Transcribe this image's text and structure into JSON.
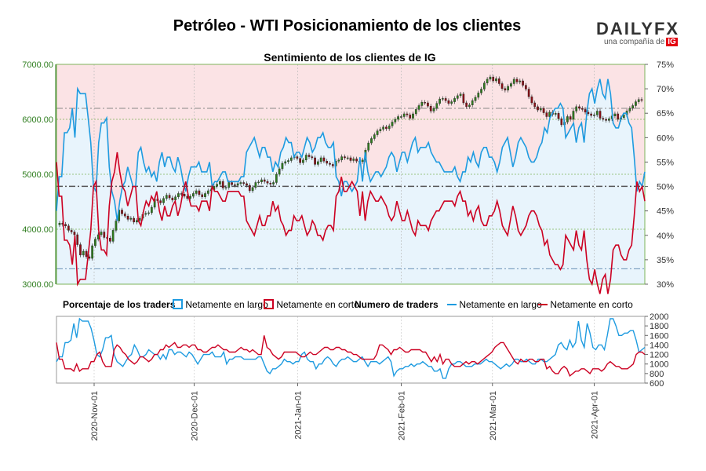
{
  "title": "Petróleo - WTI Posicionamiento de los clientes",
  "brand": {
    "name_left": "DAILY",
    "name_right": "FX",
    "tagline": "una compañía de",
    "tagline_mark": "IG"
  },
  "colors": {
    "long": "#1e9be0",
    "short": "#cc0022",
    "bg_top": "#fbe3e5",
    "bg_bottom": "#e8f4fc",
    "candle_up": "#2e7d1e",
    "candle_down": "#8b0f16",
    "left_axis": "#2e7d1e"
  },
  "chart_data": [
    {
      "type": "line",
      "title": "Sentimiento de los clientes de IG",
      "left_axis": {
        "ticks": [
          "7000.00",
          "6000.00",
          "5000.00",
          "4000.00",
          "3000.00"
        ],
        "range": [
          3000,
          7000
        ]
      },
      "right_axis": {
        "ticks": [
          "75%",
          "70%",
          "65%",
          "60%",
          "55%",
          "50%",
          "45%",
          "40%",
          "35%",
          "30%"
        ],
        "range": [
          30,
          75
        ]
      },
      "reference_lines": {
        "price_high": 6200,
        "price_low": 3280,
        "price_mid": 4780
      },
      "series": [
        {
          "name": "Netamente en largo",
          "values": [
            45,
            52,
            52,
            61,
            61,
            62,
            66,
            60,
            70,
            69,
            69,
            69,
            64,
            59,
            50,
            49,
            59,
            63,
            63,
            64,
            54,
            49,
            47,
            43,
            47,
            50,
            51,
            54,
            52,
            50,
            50,
            57,
            58,
            55,
            53,
            54,
            52,
            53,
            51,
            55,
            57,
            54,
            56,
            56,
            54,
            53,
            56,
            54,
            51,
            49,
            52,
            54,
            54,
            54,
            55,
            53,
            53,
            53,
            55,
            50,
            51,
            51,
            52,
            53,
            53,
            51,
            51,
            51,
            51,
            51,
            52,
            52,
            57,
            58,
            59,
            60,
            58,
            56,
            58,
            58,
            56,
            56,
            53,
            55,
            54,
            57,
            58,
            60,
            59,
            59,
            56,
            57,
            57,
            56,
            58,
            60,
            59,
            57,
            58,
            60,
            60,
            61,
            59,
            58,
            58,
            59,
            52,
            51,
            48,
            51,
            51,
            50,
            49,
            50,
            51,
            56,
            51,
            57,
            53,
            51,
            52,
            53,
            53,
            52,
            53,
            54,
            56,
            57,
            56,
            53,
            55,
            57,
            57,
            55,
            57,
            59,
            60,
            57,
            58,
            58,
            58,
            59,
            57,
            56,
            55,
            55,
            54,
            53,
            53,
            53,
            53,
            54,
            52,
            51,
            53,
            53,
            56,
            55,
            57,
            55,
            54,
            57,
            58,
            58,
            56,
            56,
            55,
            53,
            55,
            58,
            59,
            60,
            57,
            54,
            56,
            59,
            60,
            59,
            58,
            56,
            55,
            55,
            56,
            58,
            59,
            62,
            61,
            64,
            65,
            66,
            66,
            67,
            66,
            60,
            61,
            62,
            63,
            59,
            62,
            63,
            59,
            65,
            69,
            70,
            67,
            70,
            72,
            69,
            68,
            72,
            69,
            63,
            62,
            62,
            64,
            65,
            65,
            63,
            62,
            56,
            49,
            51,
            50,
            53
          ]
        },
        {
          "name": "Netamente en corto",
          "values": [
            55,
            48,
            48,
            39,
            39,
            38,
            34,
            40,
            30,
            31,
            31,
            31,
            36,
            41,
            50,
            51,
            41,
            37,
            37,
            36,
            46,
            51,
            53,
            57,
            53,
            50,
            49,
            46,
            48,
            50,
            50,
            43,
            42,
            45,
            47,
            46,
            48,
            47,
            49,
            45,
            43,
            46,
            44,
            44,
            46,
            47,
            44,
            46,
            49,
            51,
            48,
            46,
            46,
            46,
            45,
            47,
            47,
            47,
            45,
            50,
            49,
            49,
            48,
            47,
            47,
            49,
            49,
            49,
            49,
            49,
            48,
            48,
            43,
            42,
            41,
            40,
            42,
            44,
            42,
            42,
            44,
            44,
            47,
            45,
            46,
            43,
            42,
            40,
            41,
            41,
            44,
            43,
            43,
            44,
            42,
            40,
            41,
            43,
            42,
            40,
            40,
            39,
            41,
            42,
            42,
            41,
            48,
            49,
            52,
            49,
            49,
            50,
            51,
            50,
            49,
            44,
            49,
            43,
            47,
            49,
            48,
            47,
            47,
            48,
            47,
            46,
            44,
            43,
            44,
            47,
            45,
            43,
            43,
            45,
            43,
            41,
            40,
            43,
            42,
            42,
            42,
            41,
            43,
            44,
            45,
            45,
            46,
            47,
            47,
            47,
            47,
            46,
            48,
            49,
            47,
            47,
            44,
            45,
            43,
            45,
            46,
            43,
            42,
            42,
            44,
            44,
            45,
            47,
            45,
            42,
            41,
            40,
            43,
            46,
            44,
            41,
            40,
            41,
            42,
            44,
            45,
            45,
            44,
            42,
            41,
            38,
            39,
            36,
            35,
            34,
            34,
            33,
            34,
            40,
            39,
            38,
            37,
            41,
            38,
            37,
            41,
            35,
            31,
            30,
            33,
            30,
            28,
            31,
            32,
            28,
            31,
            37,
            38,
            38,
            36,
            35,
            35,
            37,
            38,
            44,
            51,
            49,
            50,
            47
          ]
        }
      ],
      "price_closes": [
        4110,
        4090,
        4060,
        3980,
        3950,
        3900,
        3720,
        3530,
        3600,
        3500,
        3470,
        3700,
        3820,
        3900,
        3950,
        3850,
        3840,
        3780,
        3980,
        4150,
        4350,
        4280,
        4240,
        4180,
        4200,
        4130,
        4160,
        4200,
        4270,
        4290,
        4300,
        4400,
        4550,
        4520,
        4480,
        4560,
        4620,
        4570,
        4530,
        4590,
        4650,
        4640,
        4600,
        4560,
        4600,
        4650,
        4700,
        4630,
        4590,
        4650,
        4700,
        4720,
        4780,
        4820,
        4870,
        4750,
        4760,
        4850,
        4810,
        4800,
        4830,
        4850,
        4830,
        4800,
        4700,
        4760,
        4850,
        4860,
        4900,
        4870,
        4840,
        4820,
        4850,
        5000,
        5100,
        5200,
        5230,
        5250,
        5300,
        5320,
        5290,
        5210,
        5260,
        5350,
        5320,
        5300,
        5180,
        5230,
        5300,
        5240,
        5200,
        5180,
        5150,
        5240,
        5260,
        5320,
        5300,
        5300,
        5250,
        5280,
        5240,
        5230,
        5260,
        5440,
        5570,
        5650,
        5720,
        5790,
        5820,
        5860,
        5830,
        5880,
        5950,
        6000,
        6050,
        6050,
        6100,
        6080,
        6020,
        6100,
        6180,
        6250,
        6310,
        6300,
        6240,
        6150,
        6200,
        6290,
        6370,
        6380,
        6340,
        6290,
        6320,
        6380,
        6430,
        6460,
        6300,
        6230,
        6260,
        6340,
        6400,
        6480,
        6550,
        6660,
        6730,
        6770,
        6700,
        6740,
        6650,
        6560,
        6530,
        6600,
        6650,
        6730,
        6680,
        6700,
        6620,
        6550,
        6410,
        6300,
        6230,
        6170,
        6200,
        6120,
        6050,
        6130,
        6090,
        6110,
        6010,
        5900,
        5950,
        6050,
        6000,
        6150,
        6230,
        6200,
        6180,
        6130,
        6100,
        6070,
        6080,
        6150,
        6020,
        6000,
        5980,
        6010,
        6060,
        6100,
        6000,
        6030,
        6080,
        6150,
        6200,
        6250,
        6320,
        6360,
        6350
      ]
    },
    {
      "type": "line",
      "title": "Numero de traders",
      "right_axis": {
        "ticks": [
          "2000",
          "1800",
          "1600",
          "1400",
          "1200",
          "1000",
          "800",
          "600"
        ],
        "range": [
          600,
          2000
        ]
      },
      "x_tick_labels": [
        "2020-Nov-01",
        "2020-Dec-01",
        "2021-Jan-01",
        "2021-Feb-01",
        "2021-Mar-01",
        "2021-Apr-01"
      ],
      "series": [
        {
          "name": "Netamente en largo",
          "values": [
            1050,
            1150,
            1150,
            1450,
            1450,
            1500,
            1850,
            1550,
            1950,
            1900,
            1900,
            1900,
            1750,
            1500,
            1200,
            1150,
            1300,
            1550,
            1550,
            1600,
            1200,
            1050,
            1000,
            950,
            1050,
            1150,
            1200,
            1400,
            1300,
            1150,
            1150,
            1200,
            1300,
            1250,
            1200,
            1200,
            1100,
            1200,
            1100,
            1300,
            1300,
            1200,
            1250,
            1250,
            1200,
            1150,
            1250,
            1200,
            1100,
            1000,
            1100,
            1200,
            1200,
            1200,
            1250,
            1150,
            1150,
            1150,
            1250,
            1000,
            1100,
            1100,
            1150,
            1150,
            1150,
            1100,
            1100,
            1100,
            1100,
            1100,
            1150,
            1150,
            1000,
            850,
            800,
            900,
            900,
            950,
            1000,
            1100,
            1050,
            1050,
            1000,
            1050,
            1050,
            1200,
            1250,
            1100,
            1050,
            1050,
            900,
            1000,
            1000,
            1100,
            1150,
            1100,
            1000,
            950,
            1050,
            1100,
            1100,
            1150,
            1100,
            1050,
            1050,
            1100,
            1150,
            1050,
            950,
            1050,
            1050,
            1050,
            1000,
            1050,
            1100,
            1150,
            1050,
            750,
            850,
            900,
            900,
            950,
            950,
            1000,
            950,
            1000,
            1000,
            1050,
            1000,
            950,
            950,
            850,
            850,
            900,
            700,
            700,
            900,
            1000,
            1000,
            1050,
            1050,
            1000,
            950,
            950,
            950,
            1000,
            1000,
            1000,
            1050,
            1100,
            1050,
            1050,
            1000,
            950,
            900,
            950,
            1000,
            950,
            1000,
            1100,
            1100,
            1050,
            1050,
            1100,
            1050,
            1000,
            1000,
            1100,
            1100,
            1050,
            1050,
            1100,
            1150,
            1200,
            1400,
            1450,
            1350,
            1300,
            1500,
            1350,
            1450,
            1900,
            1500,
            1350,
            1850,
            1650,
            1350,
            1300,
            1400,
            1400,
            1300,
            1600,
            1950,
            1950,
            1800,
            1600,
            1600,
            1650,
            1650,
            1700,
            1700,
            1500,
            1250,
            1300,
            1350
          ]
        },
        {
          "name": "Netamente en corto",
          "values": [
            1450,
            1100,
            1100,
            900,
            900,
            900,
            850,
            1000,
            850,
            900,
            900,
            900,
            1050,
            1050,
            1200,
            1250,
            1050,
            950,
            950,
            950,
            1300,
            1400,
            1350,
            1250,
            1200,
            1100,
            1050,
            1000,
            1050,
            1150,
            1150,
            1100,
            1050,
            1100,
            1200,
            1200,
            1300,
            1300,
            1400,
            1350,
            1400,
            1450,
            1350,
            1350,
            1400,
            1400,
            1350,
            1400,
            1400,
            1300,
            1300,
            1250,
            1250,
            1300,
            1350,
            1350,
            1400,
            1350,
            1300,
            1300,
            1250,
            1250,
            1250,
            1300,
            1350,
            1300,
            1300,
            1250,
            1300,
            1250,
            1200,
            1200,
            1600,
            1350,
            1300,
            1200,
            1150,
            1100,
            1150,
            1250,
            1250,
            1250,
            1250,
            1250,
            1200,
            1150,
            1150,
            1200,
            1250,
            1200,
            1200,
            1250,
            1300,
            1350,
            1350,
            1300,
            1300,
            1350,
            1350,
            1300,
            1300,
            1250,
            1250,
            1200,
            1200,
            1150,
            1100,
            1100,
            1100,
            1100,
            1100,
            1200,
            1400,
            1400,
            1350,
            1300,
            1200,
            1300,
            1300,
            1350,
            1300,
            1250,
            1250,
            1300,
            1300,
            1300,
            1300,
            1250,
            1250,
            1150,
            1050,
            1150,
            1050,
            1200,
            1000,
            1100,
            1100,
            1000,
            950,
            950,
            950,
            1000,
            1050,
            1000,
            1050,
            1050,
            1000,
            1050,
            1100,
            1150,
            1200,
            1250,
            1350,
            1400,
            1450,
            1450,
            1350,
            1250,
            1150,
            1050,
            1000,
            1100,
            1050,
            1050,
            1100,
            1100,
            1050,
            1050,
            1100,
            1100,
            900,
            950,
            850,
            800,
            800,
            900,
            950,
            900,
            750,
            800,
            850,
            850,
            900,
            900,
            850,
            800,
            900,
            900,
            900,
            850,
            900,
            1000,
            1050,
            1000,
            950,
            950,
            900,
            900,
            900,
            950,
            1000,
            1200,
            1250,
            1250,
            1200
          ]
        }
      ]
    }
  ],
  "legend": {
    "pct_title": "Porcentaje de los traders",
    "long_label": "Netamente en largo",
    "short_label": "Netamente en corto",
    "count_title": "Numero de traders",
    "count_long_label": "Netamente en largo",
    "count_short_label": "Netamente en corto"
  }
}
